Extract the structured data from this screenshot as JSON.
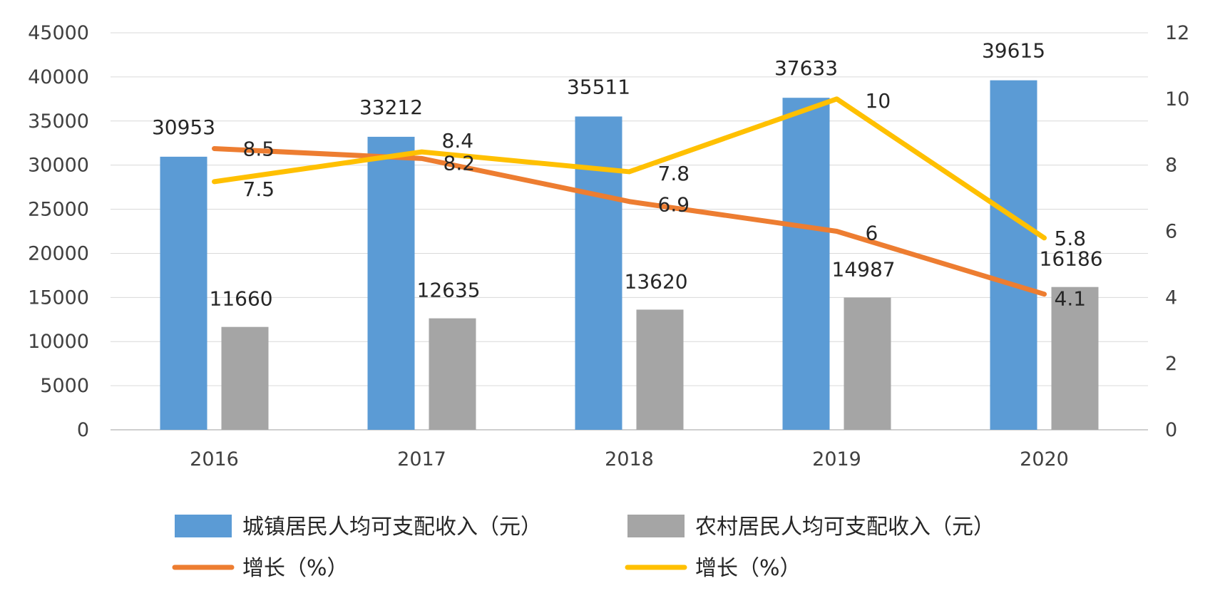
{
  "chart_data": {
    "type": "bar",
    "categories": [
      "2016",
      "2017",
      "2018",
      "2019",
      "2020"
    ],
    "ylim": [
      0,
      45000
    ],
    "yticks": [
      0,
      5000,
      10000,
      15000,
      20000,
      25000,
      30000,
      35000,
      40000,
      45000
    ],
    "y2lim": [
      0,
      12
    ],
    "y2ticks": [
      0,
      2,
      4,
      6,
      8,
      10,
      12
    ],
    "grid": true,
    "legend_position": "bottom",
    "series": [
      {
        "name": "城镇居民人均可支配收入（元）",
        "type": "bar",
        "axis": "left",
        "values": [
          30953,
          33212,
          35511,
          37633,
          39615
        ],
        "color": "#5B9BD5"
      },
      {
        "name": "农村居民人均可支配收入（元）",
        "type": "bar",
        "axis": "left",
        "values": [
          11660,
          12635,
          13620,
          14987,
          16186
        ],
        "color": "#A5A5A5"
      },
      {
        "name": "增长（%）",
        "type": "line",
        "axis": "right",
        "values": [
          8.5,
          8.2,
          6.9,
          6,
          4.1
        ],
        "color": "#ED7D31"
      },
      {
        "name": "增长（%）",
        "type": "line",
        "axis": "right",
        "values": [
          7.5,
          8.4,
          7.8,
          10,
          5.8
        ],
        "color": "#FFC000"
      }
    ]
  }
}
